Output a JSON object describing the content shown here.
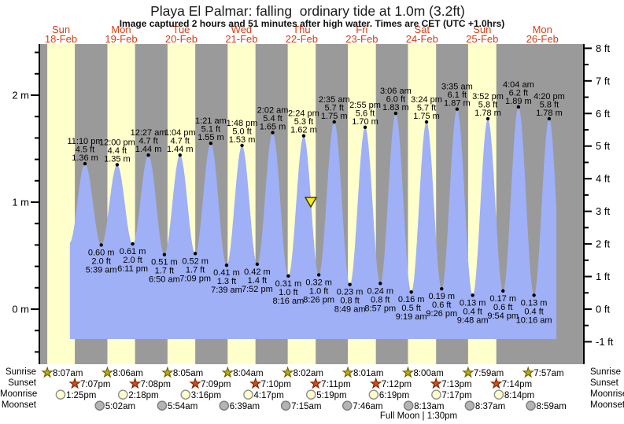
{
  "title": "Playa El Palmar: falling  ordinary tide at 1.0m (3.2ft)",
  "subtitle": "Image captured 2 hours and 51 minutes after high water. Times are CET (UTC +1.0hrs)",
  "colors": {
    "band_night": "#9a9a9a",
    "band_day": "#ffffcc",
    "tide_fill": "#9fb0f6",
    "day_label": "#dd3c10",
    "axis": "#000000",
    "text": "#000000",
    "marker_fill": "#ffe81a",
    "marker_stroke": "#3f3f00",
    "sunrise_star_fill": "#c2ab0e",
    "sunrise_star_stroke": "#6f6604",
    "sunset_star_fill": "#dd4a12",
    "sunset_star_stroke": "#7d2b06",
    "moonrise_fill": "#ffffcc",
    "moonrise_stroke": "#8f8f8f",
    "moonset_fill": "#b4b4b4",
    "moonset_stroke": "#7d7d7d"
  },
  "x_axis_days": [
    {
      "dow": "Sun",
      "date": "18-Feb"
    },
    {
      "dow": "Mon",
      "date": "19-Feb"
    },
    {
      "dow": "Tue",
      "date": "20-Feb"
    },
    {
      "dow": "Wed",
      "date": "21-Feb"
    },
    {
      "dow": "Thu",
      "date": "22-Feb"
    },
    {
      "dow": "Fri",
      "date": "23-Feb"
    },
    {
      "dow": "Sat",
      "date": "24-Feb"
    },
    {
      "dow": "Sun",
      "date": "25-Feb"
    },
    {
      "dow": "Mon",
      "date": "26-Feb"
    }
  ],
  "y_axis": {
    "left_labels": [
      {
        "text": "2 m",
        "value": 2
      },
      {
        "text": "1 m",
        "value": 1
      },
      {
        "text": "0 m",
        "value": 0
      }
    ],
    "right_labels": [
      {
        "text": "8 ft",
        "value": 8
      },
      {
        "text": "7 ft",
        "value": 7
      },
      {
        "text": "6 ft",
        "value": 6
      },
      {
        "text": "5 ft",
        "value": 5
      },
      {
        "text": "4 ft",
        "value": 4
      },
      {
        "text": "3 ft",
        "value": 3
      },
      {
        "text": "2 ft",
        "value": 2
      },
      {
        "text": "1 ft",
        "value": 1
      },
      {
        "text": "0 ft",
        "value": 0
      },
      {
        "text": "-1 ft",
        "value": -1
      }
    ]
  },
  "chart_data": {
    "type": "area",
    "title": "Tide height at Playa El Palmar, 18-Feb to 26-Feb",
    "y_unit": "m",
    "x_unit": "hours from Sun 18-Feb 00:00",
    "ylim_m": [
      -0.46,
      2.48
    ],
    "grid": false,
    "curve_start_hour": 17.15,
    "curve_end_hour": 211.2,
    "start_anchor": {
      "hour": 17.0,
      "value_m": 0.62
    },
    "end_anchor": {
      "hour": 214.0,
      "value_m": 0.12
    },
    "high_tides": [
      {
        "time": "11:10 pm",
        "ft": "4.5 ft",
        "m": "1.36 m",
        "hour": 23.167,
        "value_m": 1.36
      },
      {
        "time": "12:00 pm",
        "ft": "4.4 ft",
        "m": "1.35 m",
        "hour": 36.0,
        "value_m": 1.35
      },
      {
        "time": "12:27 am",
        "ft": "4.7 ft",
        "m": "1.44 m",
        "hour": 48.45,
        "value_m": 1.44
      },
      {
        "time": "1:04 pm",
        "ft": "4.7 ft",
        "m": "1.44 m",
        "hour": 61.067,
        "value_m": 1.44
      },
      {
        "time": "1:21 am",
        "ft": "5.1 ft",
        "m": "1.55 m",
        "hour": 73.35,
        "value_m": 1.55
      },
      {
        "time": "1:48 pm",
        "ft": "5.0 ft",
        "m": "1.53 m",
        "hour": 85.8,
        "value_m": 1.53
      },
      {
        "time": "2:02 am",
        "ft": "5.4 ft",
        "m": "1.65 m",
        "hour": 98.033,
        "value_m": 1.65
      },
      {
        "time": "2:24 pm",
        "ft": "5.3 ft",
        "m": "1.62 m",
        "hour": 110.4,
        "value_m": 1.62
      },
      {
        "time": "2:35 am",
        "ft": "5.7 ft",
        "m": "1.75 m",
        "hour": 122.583,
        "value_m": 1.75
      },
      {
        "time": "2:55 pm",
        "ft": "5.6 ft",
        "m": "1.70 m",
        "hour": 134.917,
        "value_m": 1.7
      },
      {
        "time": "3:06 am",
        "ft": "6.0 ft",
        "m": "1.83 m",
        "hour": 147.1,
        "value_m": 1.83
      },
      {
        "time": "3:24 pm",
        "ft": "5.7 ft",
        "m": "1.75 m",
        "hour": 159.4,
        "value_m": 1.75
      },
      {
        "time": "3:35 am",
        "ft": "6.1 ft",
        "m": "1.87 m",
        "hour": 171.583,
        "value_m": 1.87
      },
      {
        "time": "3:52 pm",
        "ft": "5.8 ft",
        "m": "1.78 m",
        "hour": 183.867,
        "value_m": 1.78
      },
      {
        "time": "4:04 am",
        "ft": "6.2 ft",
        "m": "1.89 m",
        "hour": 196.067,
        "value_m": 1.89
      },
      {
        "time": "4:20 pm",
        "ft": "5.8 ft",
        "m": "1.78 m",
        "hour": 208.333,
        "value_m": 1.78
      }
    ],
    "low_tides": [
      {
        "m": "0.60 m",
        "ft": "2.0 ft",
        "time": "5:39 am",
        "hour": 29.65,
        "value_m": 0.6
      },
      {
        "m": "0.61 m",
        "ft": "2.0 ft",
        "time": "6:11 pm",
        "hour": 42.183,
        "value_m": 0.61
      },
      {
        "m": "0.51 m",
        "ft": "1.7 ft",
        "time": "6:50 am",
        "hour": 54.833,
        "value_m": 0.51
      },
      {
        "m": "0.52 m",
        "ft": "1.7 ft",
        "time": "7:09 pm",
        "hour": 67.15,
        "value_m": 0.52
      },
      {
        "m": "0.41 m",
        "ft": "1.3 ft",
        "time": "7:39 am",
        "hour": 79.65,
        "value_m": 0.41
      },
      {
        "m": "0.42 m",
        "ft": "1.4 ft",
        "time": "7:52 pm",
        "hour": 91.867,
        "value_m": 0.42
      },
      {
        "m": "0.31 m",
        "ft": "1.0 ft",
        "time": "8:16 am",
        "hour": 104.267,
        "value_m": 0.31
      },
      {
        "m": "0.32 m",
        "ft": "1.0 ft",
        "time": "8:26 pm",
        "hour": 116.433,
        "value_m": 0.32
      },
      {
        "m": "0.23 m",
        "ft": "0.8 ft",
        "time": "8:49 am",
        "hour": 128.817,
        "value_m": 0.23
      },
      {
        "m": "0.24 m",
        "ft": "0.8 ft",
        "time": "8:57 pm",
        "hour": 140.95,
        "value_m": 0.24
      },
      {
        "m": "0.16 m",
        "ft": "0.5 ft",
        "time": "9:19 am",
        "hour": 153.317,
        "value_m": 0.16
      },
      {
        "m": "0.19 m",
        "ft": "0.6 ft",
        "time": "9:26 pm",
        "hour": 165.433,
        "value_m": 0.19
      },
      {
        "m": "0.13 m",
        "ft": "0.4 ft",
        "time": "9:48 am",
        "hour": 177.8,
        "value_m": 0.13
      },
      {
        "m": "0.17 m",
        "ft": "0.6 ft",
        "time": "9:54 pm",
        "hour": 189.9,
        "value_m": 0.17
      },
      {
        "m": "0.13 m",
        "ft": "0.4 ft",
        "time": "10:16 am",
        "hour": 202.267,
        "value_m": 0.13
      }
    ],
    "current_marker": {
      "hour": 113.25,
      "value_m": 1.0
    }
  },
  "astro": {
    "rows": [
      {
        "key": "sunrise",
        "label": "Sunrise",
        "icon": "sunrise-star",
        "entries": [
          {
            "time": "8:07am",
            "hour": 8.117
          },
          {
            "time": "8:06am",
            "hour": 32.1
          },
          {
            "time": "8:05am",
            "hour": 56.083
          },
          {
            "time": "8:04am",
            "hour": 80.067
          },
          {
            "time": "8:02am",
            "hour": 104.033
          },
          {
            "time": "8:01am",
            "hour": 128.017
          },
          {
            "time": "8:00am",
            "hour": 152.0
          },
          {
            "time": "7:59am",
            "hour": 175.983
          },
          {
            "time": "7:57am",
            "hour": 199.95
          }
        ]
      },
      {
        "key": "sunset",
        "label": "Sunset",
        "icon": "sunset-star",
        "entries": [
          {
            "time": "7:07pm",
            "hour": 19.117
          },
          {
            "time": "7:08pm",
            "hour": 43.133
          },
          {
            "time": "7:09pm",
            "hour": 67.15
          },
          {
            "time": "7:10pm",
            "hour": 91.167
          },
          {
            "time": "7:11pm",
            "hour": 115.183
          },
          {
            "time": "7:12pm",
            "hour": 139.2
          },
          {
            "time": "7:13pm",
            "hour": 163.217
          },
          {
            "time": "7:14pm",
            "hour": 187.233
          }
        ]
      },
      {
        "key": "moonrise",
        "label": "Moonrise",
        "icon": "moonrise-circle",
        "entries": [
          {
            "time": "1:25pm",
            "hour": 13.417
          },
          {
            "time": "2:18pm",
            "hour": 38.3
          },
          {
            "time": "3:16pm",
            "hour": 63.267
          },
          {
            "time": "4:17pm",
            "hour": 88.283
          },
          {
            "time": "5:19pm",
            "hour": 113.317
          },
          {
            "time": "6:19pm",
            "hour": 138.317
          },
          {
            "time": "7:17pm",
            "hour": 163.283
          },
          {
            "time": "8:14pm",
            "hour": 188.233
          }
        ]
      },
      {
        "key": "moonset",
        "label": "Moonset",
        "icon": "moonset-circle",
        "entries": [
          {
            "time": "5:02am",
            "hour": 29.033
          },
          {
            "time": "5:54am",
            "hour": 53.9
          },
          {
            "time": "6:39am",
            "hour": 78.65
          },
          {
            "time": "7:15am",
            "hour": 103.25
          },
          {
            "time": "7:46am",
            "hour": 127.767
          },
          {
            "time": "8:13am",
            "hour": 152.217
          },
          {
            "time": "8:37am",
            "hour": 176.617
          },
          {
            "time": "8:59am",
            "hour": 200.983
          }
        ]
      }
    ],
    "full_moon": "Full Moon | 1:30pm"
  }
}
